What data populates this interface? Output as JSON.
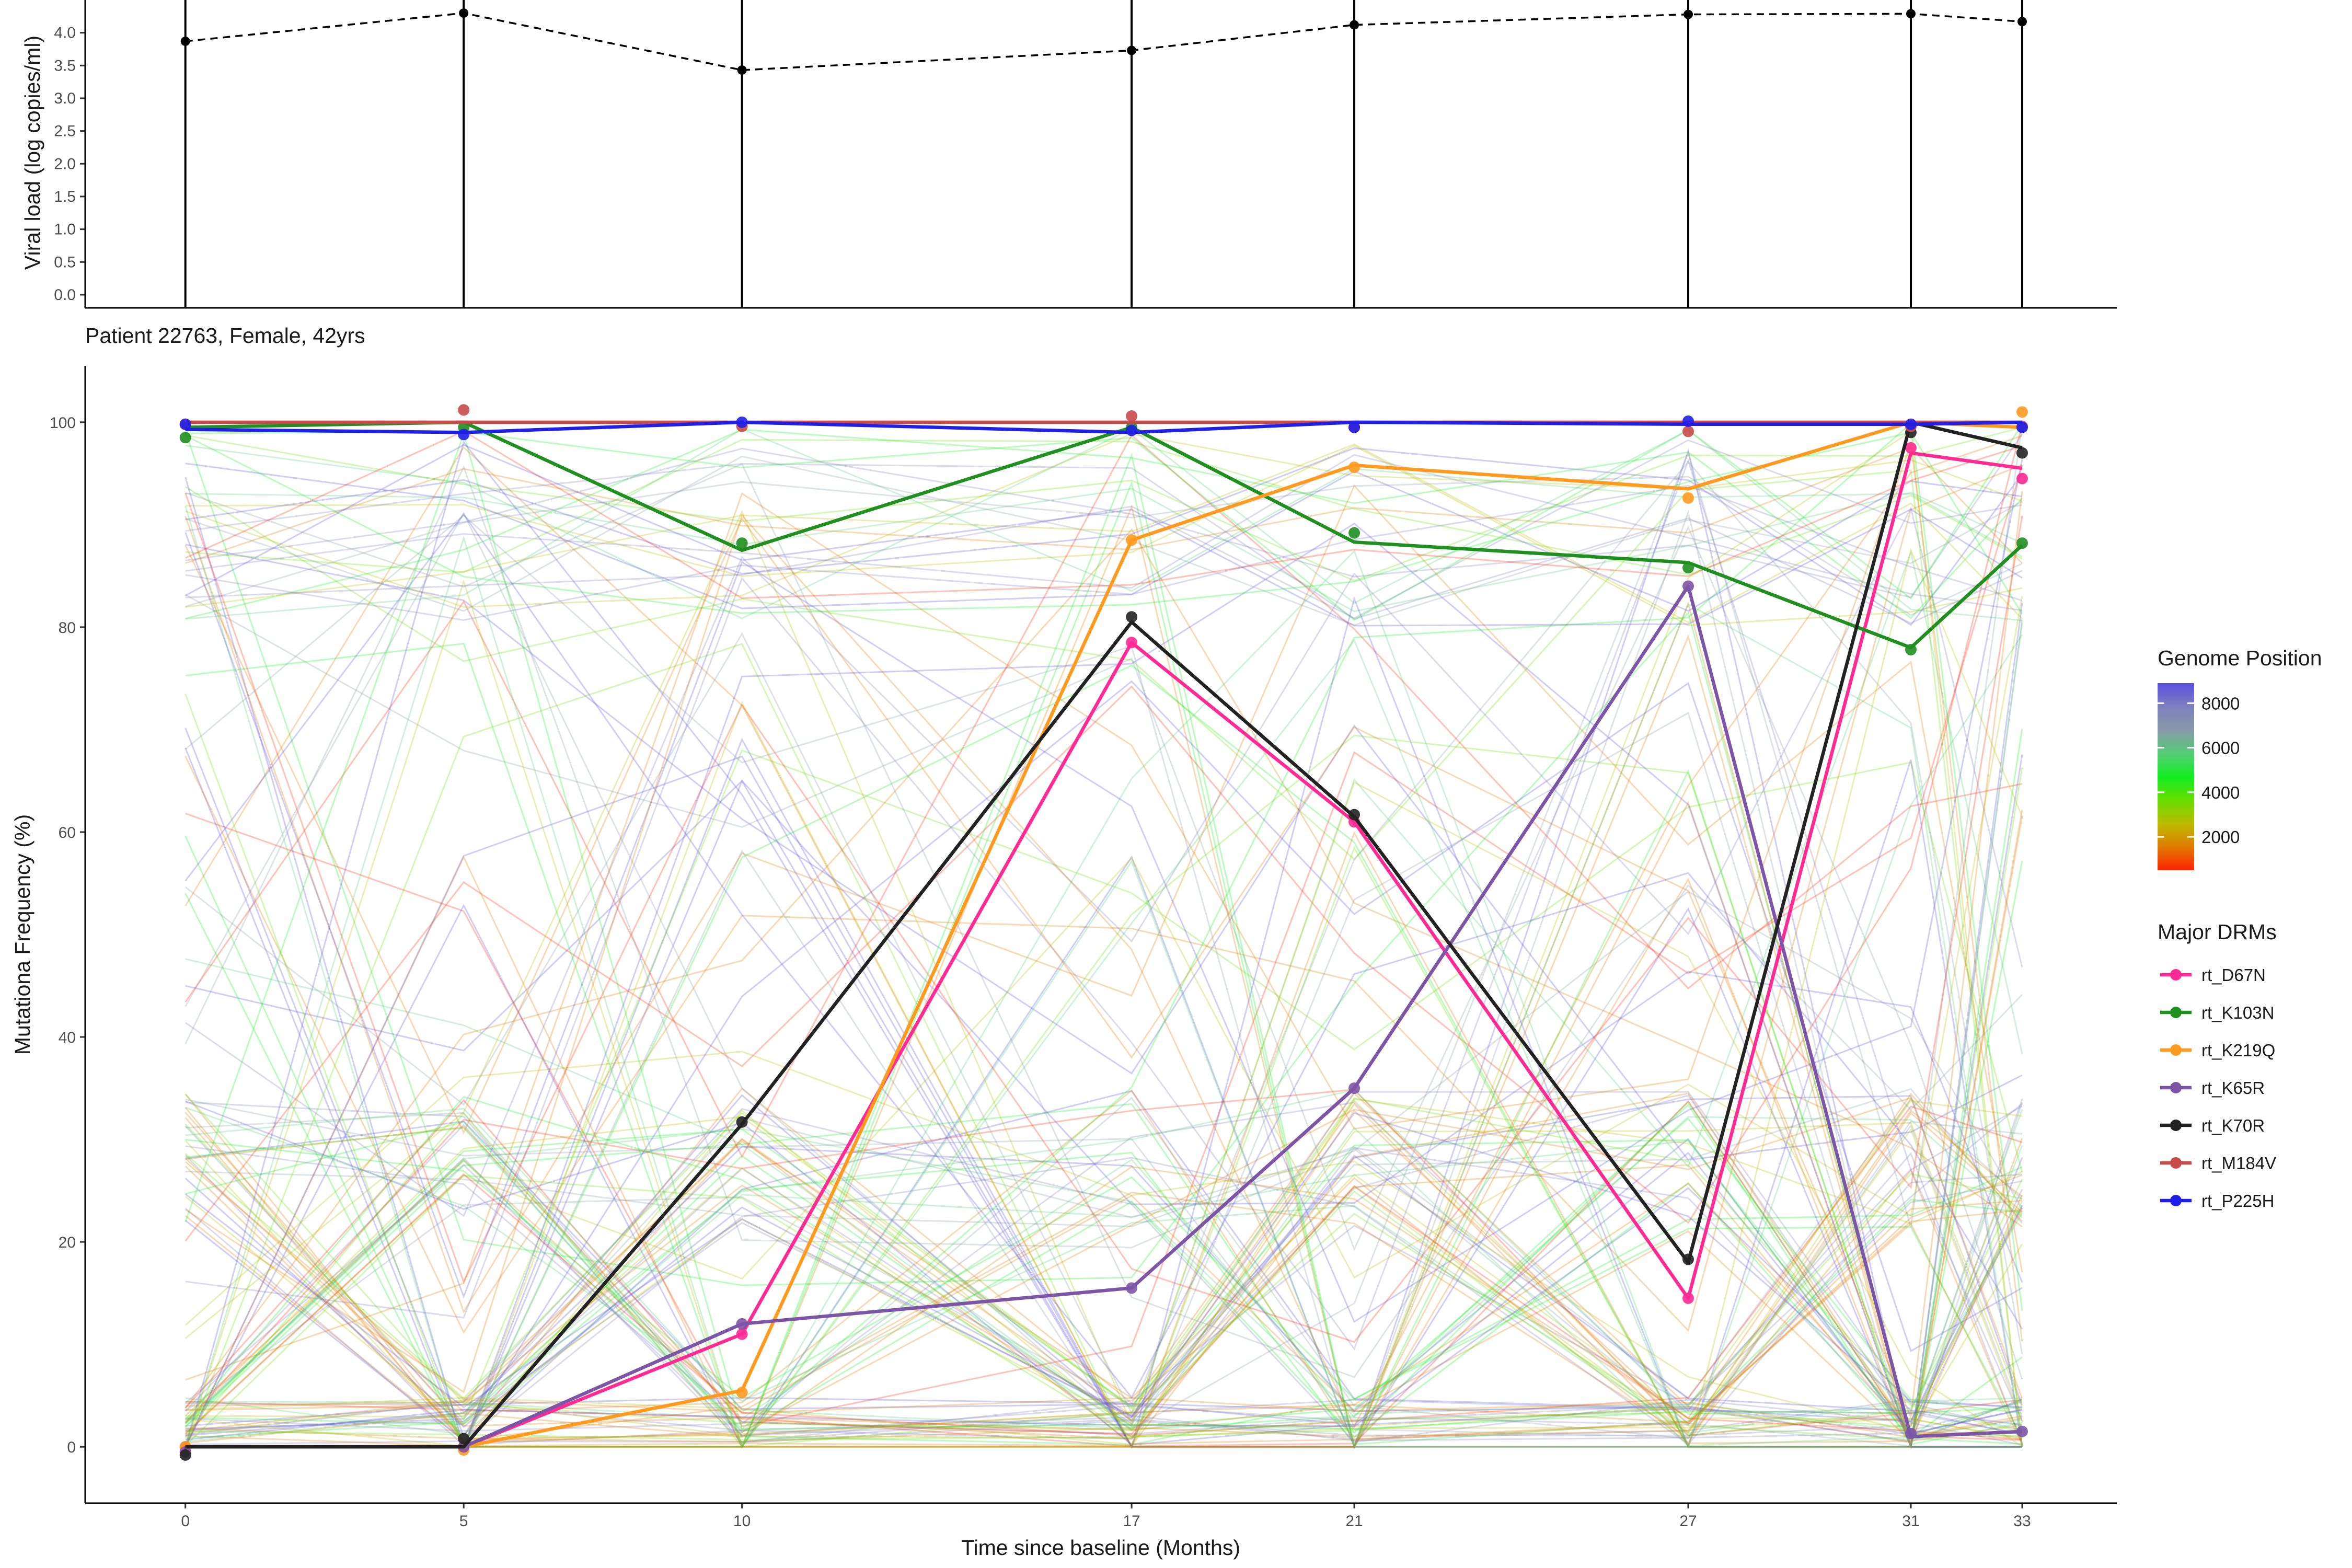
{
  "chart_data": [
    {
      "type": "line",
      "panel": "viral-load",
      "ylabel": "Viral load (log copies/ml)",
      "y_ticks": [
        "0.0",
        "0.5",
        "1.0",
        "1.5",
        "2.0",
        "2.5",
        "3.0",
        "3.5",
        "4.0"
      ],
      "ylim": [
        -0.2,
        4.5
      ],
      "x": [
        0,
        5,
        10,
        17,
        21,
        27,
        31,
        33
      ],
      "values": [
        3.87,
        4.3,
        3.43,
        3.73,
        4.12,
        4.28,
        4.29,
        4.17
      ]
    },
    {
      "type": "line",
      "panel": "mutation-frequency",
      "title": "Patient 22763, Female, 42yrs",
      "xlabel": "Time since baseline (Months)",
      "ylabel": "Mutationa Frequency (%)",
      "x_ticks": [
        "0",
        "5",
        "10",
        "17",
        "21",
        "27",
        "31",
        "33"
      ],
      "y_ticks": [
        "0",
        "20",
        "40",
        "60",
        "80",
        "100"
      ],
      "xlim": [
        -1.8,
        34.7
      ],
      "ylim": [
        -5.5,
        105.5
      ],
      "x": [
        0,
        5,
        10,
        17,
        21,
        27,
        31,
        33
      ],
      "series": [
        {
          "name": "rt_D67N",
          "color": "#ff2a93",
          "line": [
            0,
            0,
            11,
            78.5,
            61,
            14.5,
            97,
            95.5
          ],
          "points": [
            0,
            0,
            11,
            78.5,
            61,
            14.5,
            97.5,
            94.5
          ]
        },
        {
          "name": "rt_K103N",
          "color": "#1f8f1f",
          "line": [
            99.5,
            100,
            87.5,
            99.5,
            88.3,
            86.3,
            78,
            88
          ],
          "points": [
            98.5,
            99.5,
            88.2,
            99.5,
            89.2,
            85.8,
            77.8,
            88.2
          ]
        },
        {
          "name": "rt_K219Q",
          "color": "#ff9a1f",
          "line": [
            0,
            0,
            5.5,
            88.5,
            95.8,
            93.5,
            100,
            99.5
          ],
          "points": [
            0,
            -0.3,
            5.3,
            88.5,
            95.6,
            92.6,
            99.8,
            101
          ]
        },
        {
          "name": "rt_K65R",
          "color": "#7d55a6",
          "line": [
            0,
            0,
            12,
            15.5,
            35,
            84,
            1,
            1.5
          ],
          "points": [
            -0.5,
            0,
            12,
            15.5,
            35,
            84,
            1.3,
            1.5
          ]
        },
        {
          "name": "rt_K70R",
          "color": "#222222",
          "line": [
            0,
            0,
            31.5,
            80.5,
            61.5,
            18,
            100,
            97.5
          ],
          "points": [
            -0.8,
            0.8,
            31.7,
            81,
            61.7,
            18.3,
            99,
            97
          ]
        },
        {
          "name": "rt_M184V",
          "color": "#c94a4a",
          "line": [
            100,
            100,
            100,
            100,
            100,
            100,
            100,
            100
          ],
          "points": [
            99.8,
            101.2,
            99.6,
            100.6,
            99.5,
            99.1,
            99.6,
            99.6
          ]
        },
        {
          "name": "rt_P225H",
          "color": "#1f1fe8",
          "line": [
            99.3,
            99,
            100,
            99,
            100,
            99.8,
            99.8,
            100
          ],
          "points": [
            99.8,
            98.8,
            100,
            99.2,
            99.5,
            100.1,
            99.8,
            99.5
          ]
        }
      ]
    }
  ],
  "legend": {
    "genome_title": "Genome Position",
    "genome_ticks": [
      "8000",
      "6000",
      "4000",
      "2000"
    ],
    "genome_colors": [
      "#ff2200",
      "#e07b00",
      "#bbbb00",
      "#66dd00",
      "#11ee22",
      "#55cc77",
      "#8899aa",
      "#7f7fbf",
      "#5a4fe0"
    ],
    "drm_title": "Major DRMs"
  }
}
